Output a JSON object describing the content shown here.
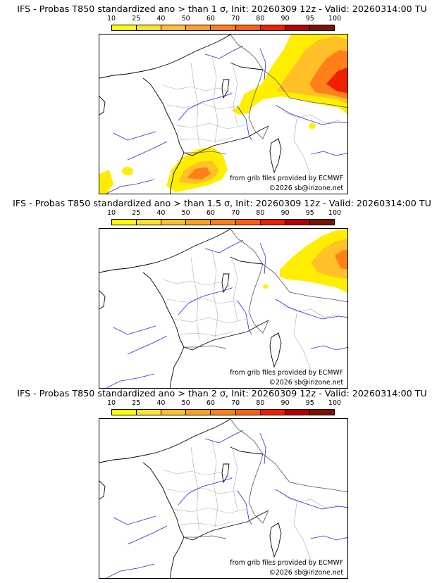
{
  "colorbar": {
    "ticks": [
      "10",
      "25",
      "40",
      "50",
      "60",
      "70",
      "80",
      "90",
      "95",
      "100"
    ],
    "colors": [
      "#ffff00",
      "#ffe030",
      "#ffc028",
      "#ffa020",
      "#ff8018",
      "#ff6010",
      "#ee2000",
      "#b40000",
      "#801000"
    ]
  },
  "panels": [
    {
      "title": "IFS - Probas T850  standardized ano > than 1 σ, Init: 20260309 12z - Valid: 20260314:00 TU",
      "credit_line1": "from grib files provided by ECMWF",
      "credit_line2": "©2026 sb@irizone.net"
    },
    {
      "title": "IFS - Probas T850  standardized ano > than 1.5 σ, Init: 20260309 12z - Valid: 20260314:00 TU",
      "credit_line1": "from grib files provided by ECMWF",
      "credit_line2": "©2026 sb@irizone.net"
    },
    {
      "title": "IFS - Probas T850  standardized ano > than 2 σ, Init: 20260309 12z - Valid: 20260314:00 TU",
      "credit_line1": "from grib files provided by ECMWF",
      "credit_line2": "©2026 sb@irizone.net"
    }
  ]
}
